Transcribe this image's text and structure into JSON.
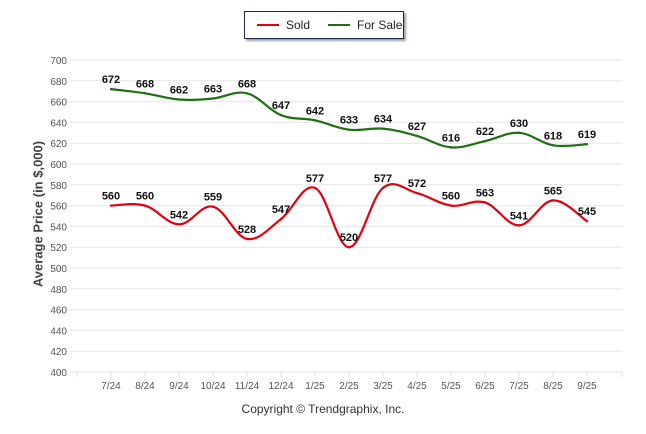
{
  "legend": {
    "items": [
      {
        "label": "Sold",
        "color": "#e3000f"
      },
      {
        "label": "For Sale",
        "color": "#1f6f12"
      }
    ]
  },
  "footer": {
    "copyright": "Copyright © Trendgraphix, Inc."
  },
  "chart_data": {
    "type": "line",
    "title": "",
    "xlabel": "",
    "ylabel": "Average Price (in $,000)",
    "ylim": [
      400,
      700
    ],
    "yticks": [
      400,
      420,
      440,
      460,
      480,
      500,
      520,
      540,
      560,
      580,
      600,
      620,
      640,
      660,
      680,
      700
    ],
    "grid": true,
    "legend_position": "top-center",
    "categories": [
      "7/24",
      "8/24",
      "9/24",
      "10/24",
      "11/24",
      "12/24",
      "1/25",
      "2/25",
      "3/25",
      "4/25",
      "5/25",
      "6/25",
      "7/25",
      "8/25",
      "9/25"
    ],
    "series": [
      {
        "name": "Sold",
        "color": "#e3000f",
        "values": [
          560,
          560,
          542,
          559,
          528,
          547,
          577,
          520,
          577,
          572,
          560,
          563,
          541,
          565,
          545
        ]
      },
      {
        "name": "For Sale",
        "color": "#1f6f12",
        "values": [
          672,
          668,
          662,
          663,
          668,
          647,
          642,
          633,
          634,
          627,
          616,
          622,
          630,
          618,
          619
        ]
      }
    ]
  }
}
